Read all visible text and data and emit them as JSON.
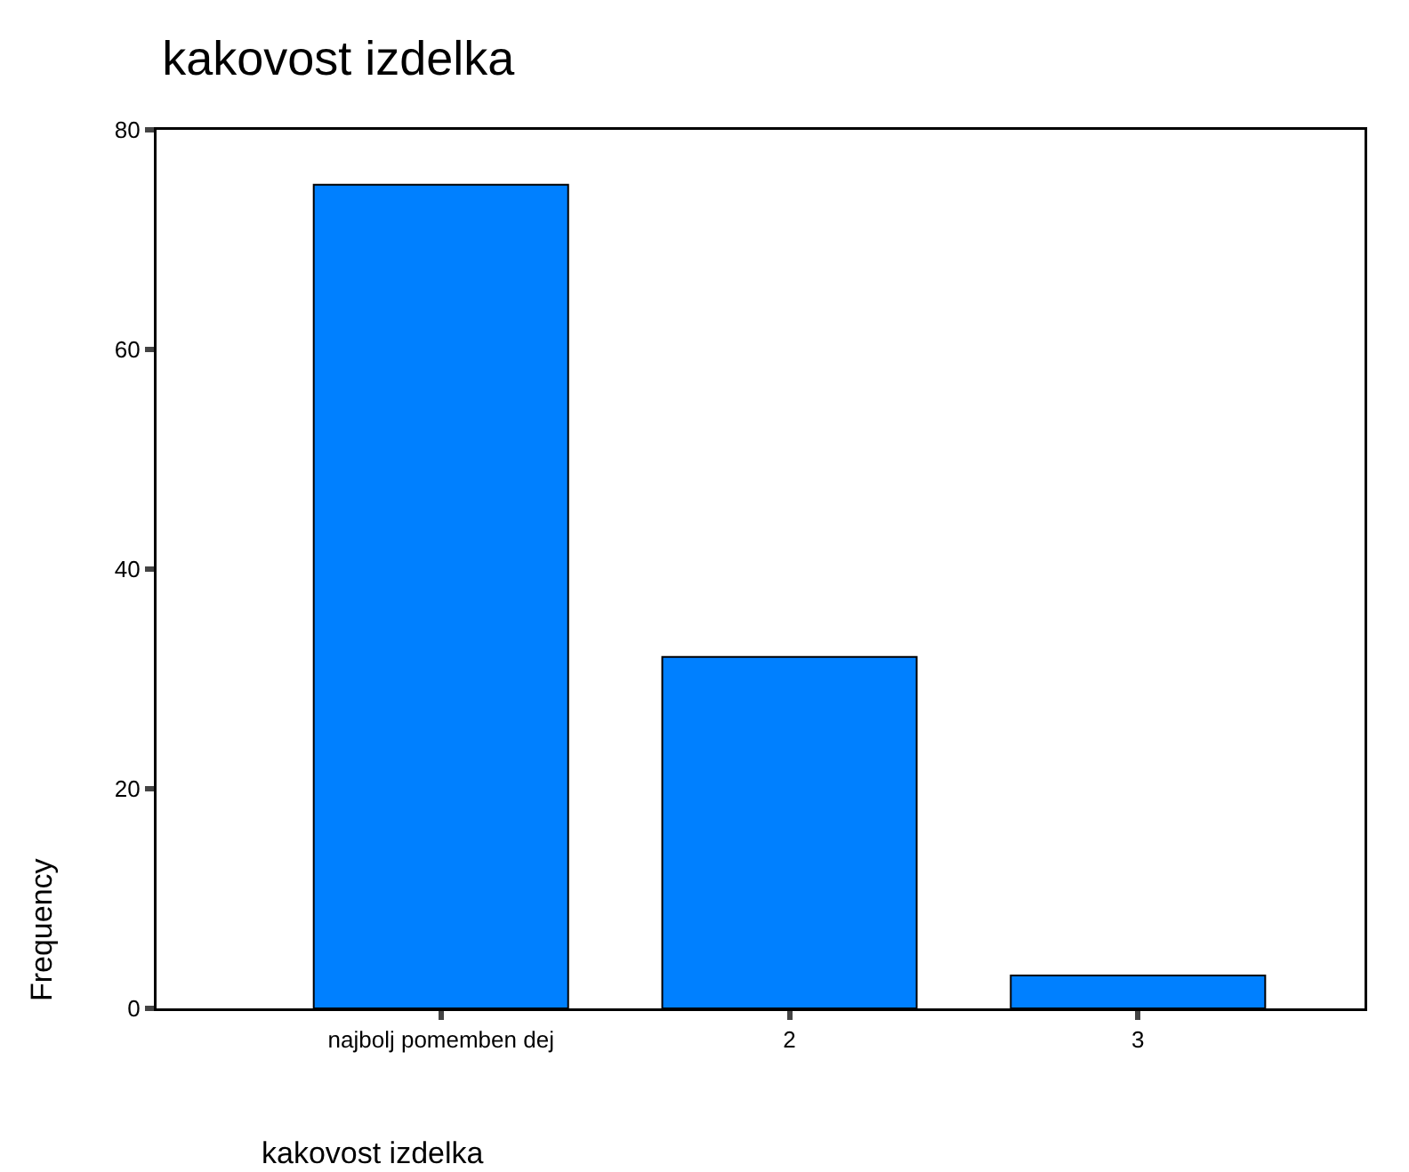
{
  "chart_data": {
    "type": "bar",
    "title": "kakovost izdelka",
    "xlabel": "kakovost izdelka",
    "ylabel": "Frequency",
    "categories": [
      "najbolj pomemben dej",
      "2",
      "3"
    ],
    "values": [
      75,
      32,
      3
    ],
    "color": "#0080ff",
    "ylim": [
      0,
      80
    ],
    "yticks": [
      0,
      20,
      40,
      60,
      80
    ],
    "grid": false
  }
}
